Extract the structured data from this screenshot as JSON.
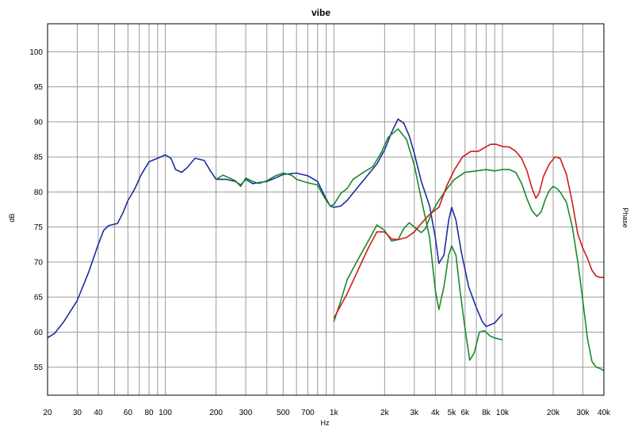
{
  "chart_data": {
    "type": "line",
    "title": "vibe",
    "xlabel": "Hz",
    "ylabel": "dB",
    "ylabel_right": "Phase",
    "x_scale": "log",
    "xlim": [
      20,
      40000
    ],
    "ylim": [
      51,
      104
    ],
    "grid": true,
    "x_ticks": [
      {
        "v": 20,
        "label": "20"
      },
      {
        "v": 30,
        "label": "30"
      },
      {
        "v": 40,
        "label": "40"
      },
      {
        "v": 60,
        "label": "60"
      },
      {
        "v": 80,
        "label": "80"
      },
      {
        "v": 100,
        "label": "100"
      },
      {
        "v": 200,
        "label": "200"
      },
      {
        "v": 300,
        "label": "300"
      },
      {
        "v": 500,
        "label": "500"
      },
      {
        "v": 700,
        "label": "700"
      },
      {
        "v": 1000,
        "label": "1k"
      },
      {
        "v": 2000,
        "label": "2k"
      },
      {
        "v": 3000,
        "label": "3k"
      },
      {
        "v": 4000,
        "label": "4k"
      },
      {
        "v": 5000,
        "label": "5k"
      },
      {
        "v": 6000,
        "label": "6k"
      },
      {
        "v": 8000,
        "label": "8k"
      },
      {
        "v": 10000,
        "label": "10k"
      },
      {
        "v": 20000,
        "label": "20k"
      },
      {
        "v": 30000,
        "label": "30k"
      },
      {
        "v": 40000,
        "label": "40k"
      }
    ],
    "y_ticks": [
      55,
      60,
      65,
      70,
      75,
      80,
      85,
      90,
      95,
      100
    ],
    "series": [
      {
        "color": "#1a2f9c",
        "points": [
          [
            20,
            59.2
          ],
          [
            22,
            59.8
          ],
          [
            25,
            61.5
          ],
          [
            30,
            64.5
          ],
          [
            35,
            68.5
          ],
          [
            40,
            72.5
          ],
          [
            43,
            74.5
          ],
          [
            46,
            75.2
          ],
          [
            52,
            75.5
          ],
          [
            56,
            77
          ],
          [
            60,
            78.8
          ],
          [
            66,
            80.5
          ],
          [
            72,
            82.5
          ],
          [
            80,
            84.3
          ],
          [
            90,
            84.8
          ],
          [
            100,
            85.3
          ],
          [
            108,
            84.8
          ],
          [
            115,
            83.2
          ],
          [
            125,
            82.8
          ],
          [
            135,
            83.5
          ],
          [
            150,
            84.8
          ],
          [
            170,
            84.5
          ],
          [
            185,
            83
          ],
          [
            200,
            81.8
          ],
          [
            230,
            81.8
          ],
          [
            260,
            81.5
          ],
          [
            280,
            81
          ],
          [
            300,
            81.8
          ],
          [
            330,
            81.2
          ],
          [
            400,
            81.5
          ],
          [
            450,
            82
          ],
          [
            500,
            82.5
          ],
          [
            600,
            82.7
          ],
          [
            700,
            82.3
          ],
          [
            800,
            81.5
          ],
          [
            850,
            80.2
          ],
          [
            900,
            79
          ],
          [
            950,
            78
          ],
          [
            1000,
            77.8
          ],
          [
            1100,
            78
          ],
          [
            1200,
            78.8
          ],
          [
            1400,
            80.8
          ],
          [
            1600,
            82.5
          ],
          [
            1800,
            84
          ],
          [
            2000,
            86
          ],
          [
            2200,
            88.5
          ],
          [
            2400,
            90.4
          ],
          [
            2600,
            89.8
          ],
          [
            2800,
            88
          ],
          [
            3000,
            85.5
          ],
          [
            3300,
            81.5
          ],
          [
            3700,
            78
          ],
          [
            4000,
            73.5
          ],
          [
            4200,
            69.8
          ],
          [
            4500,
            71
          ],
          [
            4800,
            76
          ],
          [
            5000,
            77.8
          ],
          [
            5300,
            76
          ],
          [
            5700,
            71.5
          ],
          [
            6300,
            66.5
          ],
          [
            7000,
            63.5
          ],
          [
            7600,
            61.5
          ],
          [
            8000,
            60.8
          ],
          [
            9000,
            61.3
          ],
          [
            10000,
            62.6
          ]
        ]
      },
      {
        "color": "#1a8a2a",
        "points": [
          [
            200,
            81.8
          ],
          [
            220,
            82.4
          ],
          [
            240,
            82
          ],
          [
            260,
            81.6
          ],
          [
            280,
            80.8
          ],
          [
            300,
            82
          ],
          [
            330,
            81.5
          ],
          [
            360,
            81.2
          ],
          [
            400,
            81.6
          ],
          [
            450,
            82.3
          ],
          [
            500,
            82.7
          ],
          [
            560,
            82.4
          ],
          [
            600,
            81.8
          ],
          [
            700,
            81.3
          ],
          [
            800,
            81
          ],
          [
            850,
            79.8
          ],
          [
            900,
            78.8
          ],
          [
            950,
            78
          ],
          [
            1000,
            78.2
          ],
          [
            1100,
            79.8
          ],
          [
            1200,
            80.5
          ],
          [
            1300,
            81.8
          ],
          [
            1500,
            82.8
          ],
          [
            1700,
            83.6
          ],
          [
            1900,
            85.5
          ],
          [
            2100,
            87.8
          ],
          [
            2400,
            89
          ],
          [
            2700,
            87.5
          ],
          [
            3000,
            83.8
          ],
          [
            3300,
            79
          ],
          [
            3700,
            73.5
          ],
          [
            4000,
            66
          ],
          [
            4200,
            63.2
          ],
          [
            4500,
            66.5
          ],
          [
            4800,
            71
          ],
          [
            5000,
            72.3
          ],
          [
            5300,
            71
          ],
          [
            5600,
            66
          ],
          [
            6000,
            60.5
          ],
          [
            6400,
            56
          ],
          [
            6800,
            57
          ],
          [
            7300,
            60
          ],
          [
            7800,
            60.2
          ],
          [
            8500,
            59.4
          ],
          [
            9200,
            59.1
          ],
          [
            10000,
            58.9
          ]
        ]
      },
      {
        "color": "#1a8a2a",
        "points": [
          [
            1000,
            61.5
          ],
          [
            1100,
            64.5
          ],
          [
            1200,
            67.5
          ],
          [
            1400,
            70.5
          ],
          [
            1600,
            73
          ],
          [
            1800,
            75.3
          ],
          [
            2000,
            74.5
          ],
          [
            2200,
            73
          ],
          [
            2400,
            73.2
          ],
          [
            2600,
            74.8
          ],
          [
            2800,
            75.6
          ],
          [
            3000,
            75
          ],
          [
            3300,
            74.2
          ],
          [
            3500,
            74.8
          ],
          [
            3800,
            77
          ],
          [
            4200,
            78.8
          ],
          [
            4700,
            80.5
          ],
          [
            5200,
            81.8
          ],
          [
            6000,
            82.8
          ],
          [
            7000,
            83
          ],
          [
            8000,
            83.2
          ],
          [
            9000,
            83
          ],
          [
            10000,
            83.2
          ],
          [
            11000,
            83.2
          ],
          [
            12000,
            82.8
          ],
          [
            13000,
            81.2
          ],
          [
            14000,
            79
          ],
          [
            15000,
            77.3
          ],
          [
            16000,
            76.5
          ],
          [
            17000,
            77.2
          ],
          [
            18000,
            79
          ],
          [
            19000,
            80.2
          ],
          [
            20000,
            80.8
          ],
          [
            21000,
            80.5
          ],
          [
            22000,
            80
          ],
          [
            24000,
            78.5
          ],
          [
            26000,
            75
          ],
          [
            28000,
            70
          ],
          [
            30000,
            64.5
          ],
          [
            32000,
            59
          ],
          [
            34000,
            55.8
          ],
          [
            36000,
            55
          ],
          [
            38000,
            54.8
          ],
          [
            40000,
            54.5
          ]
        ]
      },
      {
        "color": "#d11a1a",
        "points": [
          [
            1000,
            62
          ],
          [
            1200,
            65.5
          ],
          [
            1400,
            69
          ],
          [
            1600,
            72
          ],
          [
            1800,
            74.3
          ],
          [
            2000,
            74.3
          ],
          [
            2200,
            73.3
          ],
          [
            2400,
            73.2
          ],
          [
            2700,
            73.5
          ],
          [
            3000,
            74.3
          ],
          [
            3300,
            75.5
          ],
          [
            3700,
            76.8
          ],
          [
            4200,
            77.8
          ],
          [
            4700,
            81
          ],
          [
            5200,
            83.2
          ],
          [
            5800,
            85
          ],
          [
            6500,
            85.8
          ],
          [
            7200,
            85.8
          ],
          [
            7800,
            86.3
          ],
          [
            8500,
            86.8
          ],
          [
            9200,
            86.8
          ],
          [
            10000,
            86.5
          ],
          [
            11000,
            86.4
          ],
          [
            12000,
            85.8
          ],
          [
            13000,
            84.8
          ],
          [
            14000,
            83
          ],
          [
            15000,
            80.5
          ],
          [
            15800,
            79.1
          ],
          [
            16500,
            79.8
          ],
          [
            17500,
            82.2
          ],
          [
            19000,
            84
          ],
          [
            20500,
            85
          ],
          [
            22000,
            84.8
          ],
          [
            24000,
            82.5
          ],
          [
            26000,
            78.5
          ],
          [
            28000,
            74
          ],
          [
            30000,
            72
          ],
          [
            32000,
            70.5
          ],
          [
            34000,
            68.8
          ],
          [
            36000,
            68
          ],
          [
            38000,
            67.8
          ],
          [
            40000,
            67.8
          ]
        ]
      }
    ]
  }
}
